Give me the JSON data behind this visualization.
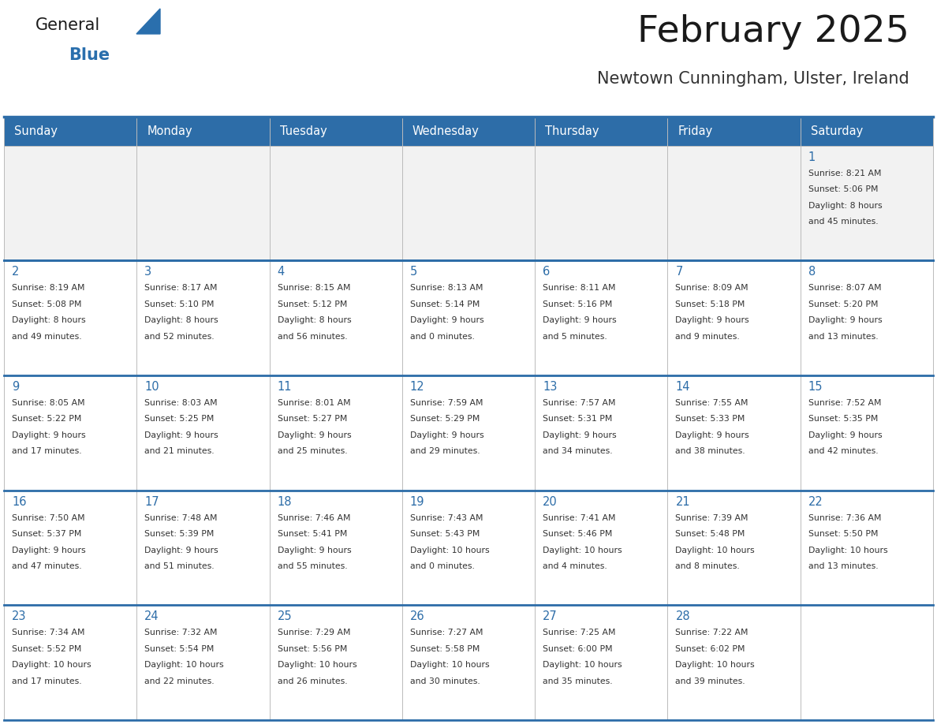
{
  "title": "February 2025",
  "subtitle": "Newtown Cunningham, Ulster, Ireland",
  "header_bg": "#2d6da8",
  "header_text_color": "#ffffff",
  "cell_bg": "#ffffff",
  "cell_bg_first": "#f2f2f2",
  "border_color_thick": "#2d6da8",
  "border_color_thin": "#bbbbbb",
  "day_headers": [
    "Sunday",
    "Monday",
    "Tuesday",
    "Wednesday",
    "Thursday",
    "Friday",
    "Saturday"
  ],
  "title_color": "#1a1a1a",
  "subtitle_color": "#333333",
  "day_num_color": "#2d6da8",
  "cell_text_color": "#333333",
  "logo_general_color": "#1a1a1a",
  "logo_blue_color": "#2a6fad",
  "weeks": [
    [
      {
        "day": null,
        "sunrise": null,
        "sunset": null,
        "daylight": null
      },
      {
        "day": null,
        "sunrise": null,
        "sunset": null,
        "daylight": null
      },
      {
        "day": null,
        "sunrise": null,
        "sunset": null,
        "daylight": null
      },
      {
        "day": null,
        "sunrise": null,
        "sunset": null,
        "daylight": null
      },
      {
        "day": null,
        "sunrise": null,
        "sunset": null,
        "daylight": null
      },
      {
        "day": null,
        "sunrise": null,
        "sunset": null,
        "daylight": null
      },
      {
        "day": 1,
        "sunrise": "8:21 AM",
        "sunset": "5:06 PM",
        "daylight": "8 hours\nand 45 minutes."
      }
    ],
    [
      {
        "day": 2,
        "sunrise": "8:19 AM",
        "sunset": "5:08 PM",
        "daylight": "8 hours\nand 49 minutes."
      },
      {
        "day": 3,
        "sunrise": "8:17 AM",
        "sunset": "5:10 PM",
        "daylight": "8 hours\nand 52 minutes."
      },
      {
        "day": 4,
        "sunrise": "8:15 AM",
        "sunset": "5:12 PM",
        "daylight": "8 hours\nand 56 minutes."
      },
      {
        "day": 5,
        "sunrise": "8:13 AM",
        "sunset": "5:14 PM",
        "daylight": "9 hours\nand 0 minutes."
      },
      {
        "day": 6,
        "sunrise": "8:11 AM",
        "sunset": "5:16 PM",
        "daylight": "9 hours\nand 5 minutes."
      },
      {
        "day": 7,
        "sunrise": "8:09 AM",
        "sunset": "5:18 PM",
        "daylight": "9 hours\nand 9 minutes."
      },
      {
        "day": 8,
        "sunrise": "8:07 AM",
        "sunset": "5:20 PM",
        "daylight": "9 hours\nand 13 minutes."
      }
    ],
    [
      {
        "day": 9,
        "sunrise": "8:05 AM",
        "sunset": "5:22 PM",
        "daylight": "9 hours\nand 17 minutes."
      },
      {
        "day": 10,
        "sunrise": "8:03 AM",
        "sunset": "5:25 PM",
        "daylight": "9 hours\nand 21 minutes."
      },
      {
        "day": 11,
        "sunrise": "8:01 AM",
        "sunset": "5:27 PM",
        "daylight": "9 hours\nand 25 minutes."
      },
      {
        "day": 12,
        "sunrise": "7:59 AM",
        "sunset": "5:29 PM",
        "daylight": "9 hours\nand 29 minutes."
      },
      {
        "day": 13,
        "sunrise": "7:57 AM",
        "sunset": "5:31 PM",
        "daylight": "9 hours\nand 34 minutes."
      },
      {
        "day": 14,
        "sunrise": "7:55 AM",
        "sunset": "5:33 PM",
        "daylight": "9 hours\nand 38 minutes."
      },
      {
        "day": 15,
        "sunrise": "7:52 AM",
        "sunset": "5:35 PM",
        "daylight": "9 hours\nand 42 minutes."
      }
    ],
    [
      {
        "day": 16,
        "sunrise": "7:50 AM",
        "sunset": "5:37 PM",
        "daylight": "9 hours\nand 47 minutes."
      },
      {
        "day": 17,
        "sunrise": "7:48 AM",
        "sunset": "5:39 PM",
        "daylight": "9 hours\nand 51 minutes."
      },
      {
        "day": 18,
        "sunrise": "7:46 AM",
        "sunset": "5:41 PM",
        "daylight": "9 hours\nand 55 minutes."
      },
      {
        "day": 19,
        "sunrise": "7:43 AM",
        "sunset": "5:43 PM",
        "daylight": "10 hours\nand 0 minutes."
      },
      {
        "day": 20,
        "sunrise": "7:41 AM",
        "sunset": "5:46 PM",
        "daylight": "10 hours\nand 4 minutes."
      },
      {
        "day": 21,
        "sunrise": "7:39 AM",
        "sunset": "5:48 PM",
        "daylight": "10 hours\nand 8 minutes."
      },
      {
        "day": 22,
        "sunrise": "7:36 AM",
        "sunset": "5:50 PM",
        "daylight": "10 hours\nand 13 minutes."
      }
    ],
    [
      {
        "day": 23,
        "sunrise": "7:34 AM",
        "sunset": "5:52 PM",
        "daylight": "10 hours\nand 17 minutes."
      },
      {
        "day": 24,
        "sunrise": "7:32 AM",
        "sunset": "5:54 PM",
        "daylight": "10 hours\nand 22 minutes."
      },
      {
        "day": 25,
        "sunrise": "7:29 AM",
        "sunset": "5:56 PM",
        "daylight": "10 hours\nand 26 minutes."
      },
      {
        "day": 26,
        "sunrise": "7:27 AM",
        "sunset": "5:58 PM",
        "daylight": "10 hours\nand 30 minutes."
      },
      {
        "day": 27,
        "sunrise": "7:25 AM",
        "sunset": "6:00 PM",
        "daylight": "10 hours\nand 35 minutes."
      },
      {
        "day": 28,
        "sunrise": "7:22 AM",
        "sunset": "6:02 PM",
        "daylight": "10 hours\nand 39 minutes."
      },
      {
        "day": null,
        "sunrise": null,
        "sunset": null,
        "daylight": null
      }
    ]
  ]
}
